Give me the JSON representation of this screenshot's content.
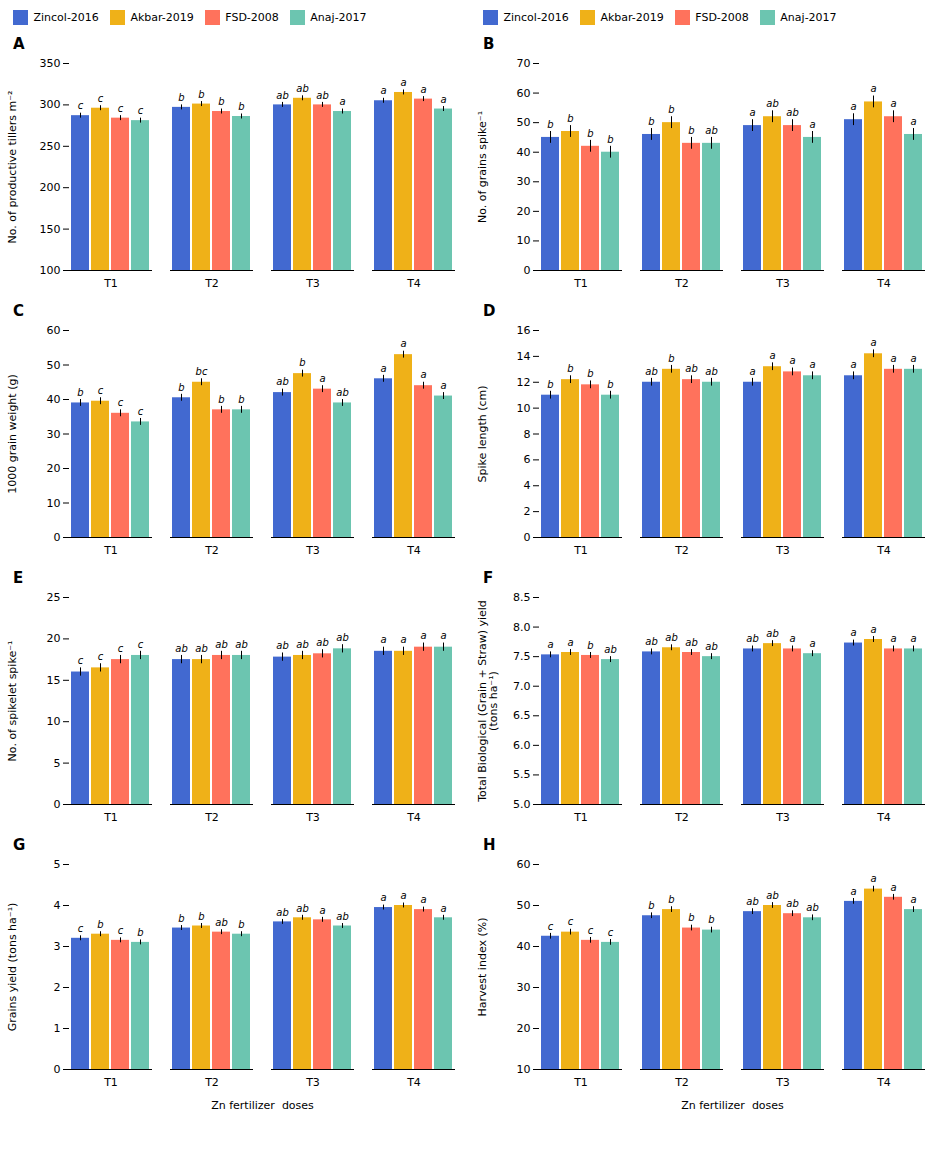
{
  "chart_data": [
    {
      "type": "bar",
      "title": "A",
      "ylabel": "No. of productive tillers m⁻²",
      "categories": [
        "T1",
        "T2",
        "T3",
        "T4"
      ],
      "ylim": [
        100,
        350
      ],
      "yticks": [
        100,
        150,
        200,
        250,
        300,
        350
      ],
      "legend": "top",
      "series": [
        {
          "name": "Zincol-2016",
          "values": [
            287,
            297,
            300,
            305
          ],
          "errors": [
            3,
            3,
            3,
            3
          ],
          "annotations": [
            "c",
            "b",
            "ab",
            "a"
          ]
        },
        {
          "name": "Akbar-2019",
          "values": [
            296,
            301,
            308,
            315
          ],
          "errors": [
            3,
            3,
            3,
            3
          ],
          "annotations": [
            "c",
            "b",
            "ab",
            "a"
          ]
        },
        {
          "name": "FSD-2008",
          "values": [
            284,
            292,
            300,
            307
          ],
          "errors": [
            3,
            3,
            3,
            3
          ],
          "annotations": [
            "c",
            "b",
            "ab",
            "a"
          ]
        },
        {
          "name": "Anaj-2017",
          "values": [
            281,
            286,
            292,
            295
          ],
          "errors": [
            3,
            3,
            3,
            3
          ],
          "annotations": [
            "c",
            "b",
            "a",
            "a"
          ]
        }
      ]
    },
    {
      "type": "bar",
      "title": "B",
      "ylabel": "No. of grains spike⁻¹",
      "categories": [
        "T1",
        "T2",
        "T3",
        "T4"
      ],
      "ylim": [
        0,
        70
      ],
      "yticks": [
        0,
        10,
        20,
        30,
        40,
        50,
        60,
        70
      ],
      "legend": "top",
      "series": [
        {
          "name": "Zincol-2016",
          "values": [
            45,
            46,
            49,
            51
          ],
          "errors": [
            2,
            2,
            2,
            2
          ],
          "annotations": [
            "b",
            "b",
            "a",
            "a"
          ]
        },
        {
          "name": "Akbar-2019",
          "values": [
            47,
            50,
            52,
            57
          ],
          "errors": [
            2,
            2,
            2,
            2
          ],
          "annotations": [
            "b",
            "b",
            "ab",
            "a"
          ]
        },
        {
          "name": "FSD-2008",
          "values": [
            42,
            43,
            49,
            52
          ],
          "errors": [
            2,
            2,
            2,
            2
          ],
          "annotations": [
            "b",
            "b",
            "ab",
            "a"
          ]
        },
        {
          "name": "Anaj-2017",
          "values": [
            40,
            43,
            45,
            46
          ],
          "errors": [
            2,
            2,
            2,
            2
          ],
          "annotations": [
            "b",
            "ab",
            "a",
            "a"
          ]
        }
      ]
    },
    {
      "type": "bar",
      "title": "C",
      "ylabel": "1000 grain weight (g)",
      "categories": [
        "T1",
        "T2",
        "T3",
        "T4"
      ],
      "ylim": [
        0,
        60
      ],
      "yticks": [
        0,
        10,
        20,
        30,
        40,
        50,
        60
      ],
      "series": [
        {
          "name": "Zincol-2016",
          "values": [
            39,
            40.5,
            42,
            46
          ],
          "errors": [
            1,
            1,
            1,
            1
          ],
          "annotations": [
            "b",
            "b",
            "ab",
            "a"
          ]
        },
        {
          "name": "Akbar-2019",
          "values": [
            39.5,
            45,
            47.5,
            53
          ],
          "errors": [
            1,
            1,
            1,
            1
          ],
          "annotations": [
            "c",
            "bc",
            "b",
            "a"
          ]
        },
        {
          "name": "FSD-2008",
          "values": [
            36,
            37,
            43,
            44
          ],
          "errors": [
            1,
            1,
            1,
            1
          ],
          "annotations": [
            "c",
            "b",
            "a",
            "a"
          ]
        },
        {
          "name": "Anaj-2017",
          "values": [
            33.5,
            37,
            39,
            41
          ],
          "errors": [
            1,
            1,
            1,
            1
          ],
          "annotations": [
            "c",
            "b",
            "ab",
            "a"
          ]
        }
      ]
    },
    {
      "type": "bar",
      "title": "D",
      "ylabel": "Spike length (cm)",
      "categories": [
        "T1",
        "T2",
        "T3",
        "T4"
      ],
      "ylim": [
        0,
        16
      ],
      "yticks": [
        0,
        2,
        4,
        6,
        8,
        10,
        12,
        14,
        16
      ],
      "series": [
        {
          "name": "Zincol-2016",
          "values": [
            11.0,
            12.0,
            12.0,
            12.5
          ],
          "errors": [
            0.3,
            0.3,
            0.3,
            0.3
          ],
          "annotations": [
            "b",
            "ab",
            "a",
            "a"
          ]
        },
        {
          "name": "Akbar-2019",
          "values": [
            12.2,
            13.0,
            13.2,
            14.2
          ],
          "errors": [
            0.3,
            0.3,
            0.3,
            0.3
          ],
          "annotations": [
            "b",
            "b",
            "a",
            "a"
          ]
        },
        {
          "name": "FSD-2008",
          "values": [
            11.8,
            12.2,
            12.8,
            13.0
          ],
          "errors": [
            0.3,
            0.3,
            0.3,
            0.3
          ],
          "annotations": [
            "b",
            "ab",
            "a",
            "a"
          ]
        },
        {
          "name": "Anaj-2017",
          "values": [
            11.0,
            12.0,
            12.5,
            13.0
          ],
          "errors": [
            0.3,
            0.3,
            0.3,
            0.3
          ],
          "annotations": [
            "b",
            "ab",
            "a",
            "a"
          ]
        }
      ]
    },
    {
      "type": "bar",
      "title": "E",
      "ylabel": "No. of spikelet spike⁻¹",
      "categories": [
        "T1",
        "T2",
        "T3",
        "T4"
      ],
      "ylim": [
        0,
        25
      ],
      "yticks": [
        0,
        5,
        10,
        15,
        20,
        25
      ],
      "series": [
        {
          "name": "Zincol-2016",
          "values": [
            16.0,
            17.5,
            17.8,
            18.5
          ],
          "errors": [
            0.5,
            0.5,
            0.5,
            0.5
          ],
          "annotations": [
            "c",
            "ab",
            "ab",
            "a"
          ]
        },
        {
          "name": "Akbar-2019",
          "values": [
            16.5,
            17.5,
            18.0,
            18.5
          ],
          "errors": [
            0.5,
            0.5,
            0.5,
            0.5
          ],
          "annotations": [
            "c",
            "ab",
            "ab",
            "a"
          ]
        },
        {
          "name": "FSD-2008",
          "values": [
            17.5,
            18.0,
            18.2,
            19.0
          ],
          "errors": [
            0.5,
            0.5,
            0.5,
            0.5
          ],
          "annotations": [
            "c",
            "ab",
            "ab",
            "a"
          ]
        },
        {
          "name": "Anaj-2017",
          "values": [
            18.0,
            18.0,
            18.8,
            19.0
          ],
          "errors": [
            0.5,
            0.5,
            0.5,
            0.5
          ],
          "annotations": [
            "c",
            "ab",
            "ab",
            "a"
          ]
        }
      ]
    },
    {
      "type": "bar",
      "title": "F",
      "ylabel": "Total Biological (Grain + Straw) yield\n(tons ha⁻¹)",
      "categories": [
        "T1",
        "T2",
        "T3",
        "T4"
      ],
      "ylim": [
        5.0,
        8.5
      ],
      "yticks": [
        {
          "value": 5.0,
          "label": "5.0"
        },
        5.5,
        {
          "value": 6.0,
          "label": "6.0"
        },
        6.5,
        {
          "value": 7.0,
          "label": "7.0"
        },
        7.5,
        {
          "value": 8.0,
          "label": "8.0"
        },
        8.5
      ],
      "series": [
        {
          "name": "Zincol-2016",
          "values": [
            7.53,
            7.58,
            7.63,
            7.73
          ],
          "errors": [
            0.05,
            0.05,
            0.05,
            0.05
          ],
          "annotations": [
            "a",
            "ab",
            "ab",
            "a"
          ]
        },
        {
          "name": "Akbar-2019",
          "values": [
            7.57,
            7.65,
            7.72,
            7.79
          ],
          "errors": [
            0.05,
            0.05,
            0.05,
            0.05
          ],
          "annotations": [
            "a",
            "ab",
            "ab",
            "a"
          ]
        },
        {
          "name": "FSD-2008",
          "values": [
            7.52,
            7.57,
            7.63,
            7.63
          ],
          "errors": [
            0.05,
            0.05,
            0.05,
            0.05
          ],
          "annotations": [
            "b",
            "ab",
            "a",
            "a"
          ]
        },
        {
          "name": "Anaj-2017",
          "values": [
            7.45,
            7.5,
            7.55,
            7.63
          ],
          "errors": [
            0.05,
            0.05,
            0.05,
            0.05
          ],
          "annotations": [
            "ab",
            "ab",
            "a",
            "a"
          ]
        }
      ]
    },
    {
      "type": "bar",
      "title": "G",
      "ylabel": "Grains yield (tons ha⁻¹)",
      "xlabel": "Zn fertilizer  doses",
      "categories": [
        "T1",
        "T2",
        "T3",
        "T4"
      ],
      "ylim": [
        0,
        5
      ],
      "yticks": [
        0,
        1,
        2,
        3,
        4,
        5
      ],
      "series": [
        {
          "name": "Zincol-2016",
          "values": [
            3.2,
            3.45,
            3.6,
            3.95
          ],
          "errors": [
            0.06,
            0.06,
            0.06,
            0.06
          ],
          "annotations": [
            "c",
            "b",
            "ab",
            "a"
          ]
        },
        {
          "name": "Akbar-2019",
          "values": [
            3.3,
            3.5,
            3.7,
            4.0
          ],
          "errors": [
            0.06,
            0.06,
            0.06,
            0.06
          ],
          "annotations": [
            "b",
            "b",
            "ab",
            "a"
          ]
        },
        {
          "name": "FSD-2008",
          "values": [
            3.15,
            3.35,
            3.65,
            3.9
          ],
          "errors": [
            0.06,
            0.06,
            0.06,
            0.06
          ],
          "annotations": [
            "c",
            "ab",
            "a",
            "a"
          ]
        },
        {
          "name": "Anaj-2017",
          "values": [
            3.1,
            3.3,
            3.5,
            3.7
          ],
          "errors": [
            0.06,
            0.06,
            0.06,
            0.06
          ],
          "annotations": [
            "b",
            "b",
            "ab",
            "a"
          ]
        }
      ]
    },
    {
      "type": "bar",
      "title": "H",
      "ylabel": "Harvest index (%)",
      "xlabel": "Zn fertilizer  doses",
      "categories": [
        "T1",
        "T2",
        "T3",
        "T4"
      ],
      "ylim": [
        10,
        60
      ],
      "yticks": [
        10,
        20,
        30,
        40,
        50,
        60
      ],
      "series": [
        {
          "name": "Zincol-2016",
          "values": [
            42.5,
            47.5,
            48.5,
            51.0
          ],
          "errors": [
            0.7,
            0.7,
            0.7,
            0.7
          ],
          "annotations": [
            "c",
            "b",
            "ab",
            "a"
          ]
        },
        {
          "name": "Akbar-2019",
          "values": [
            43.5,
            49.0,
            50.0,
            54.0
          ],
          "errors": [
            0.7,
            0.7,
            0.7,
            0.7
          ],
          "annotations": [
            "c",
            "b",
            "ab",
            "a"
          ]
        },
        {
          "name": "FSD-2008",
          "values": [
            41.5,
            44.5,
            48.0,
            52.0
          ],
          "errors": [
            0.7,
            0.7,
            0.7,
            0.7
          ],
          "annotations": [
            "c",
            "b",
            "ab",
            "a"
          ]
        },
        {
          "name": "Anaj-2017",
          "values": [
            41.0,
            44.0,
            47.0,
            49.0
          ],
          "errors": [
            0.7,
            0.7,
            0.7,
            0.7
          ],
          "annotations": [
            "c",
            "b",
            "ab",
            "a"
          ]
        }
      ]
    }
  ]
}
